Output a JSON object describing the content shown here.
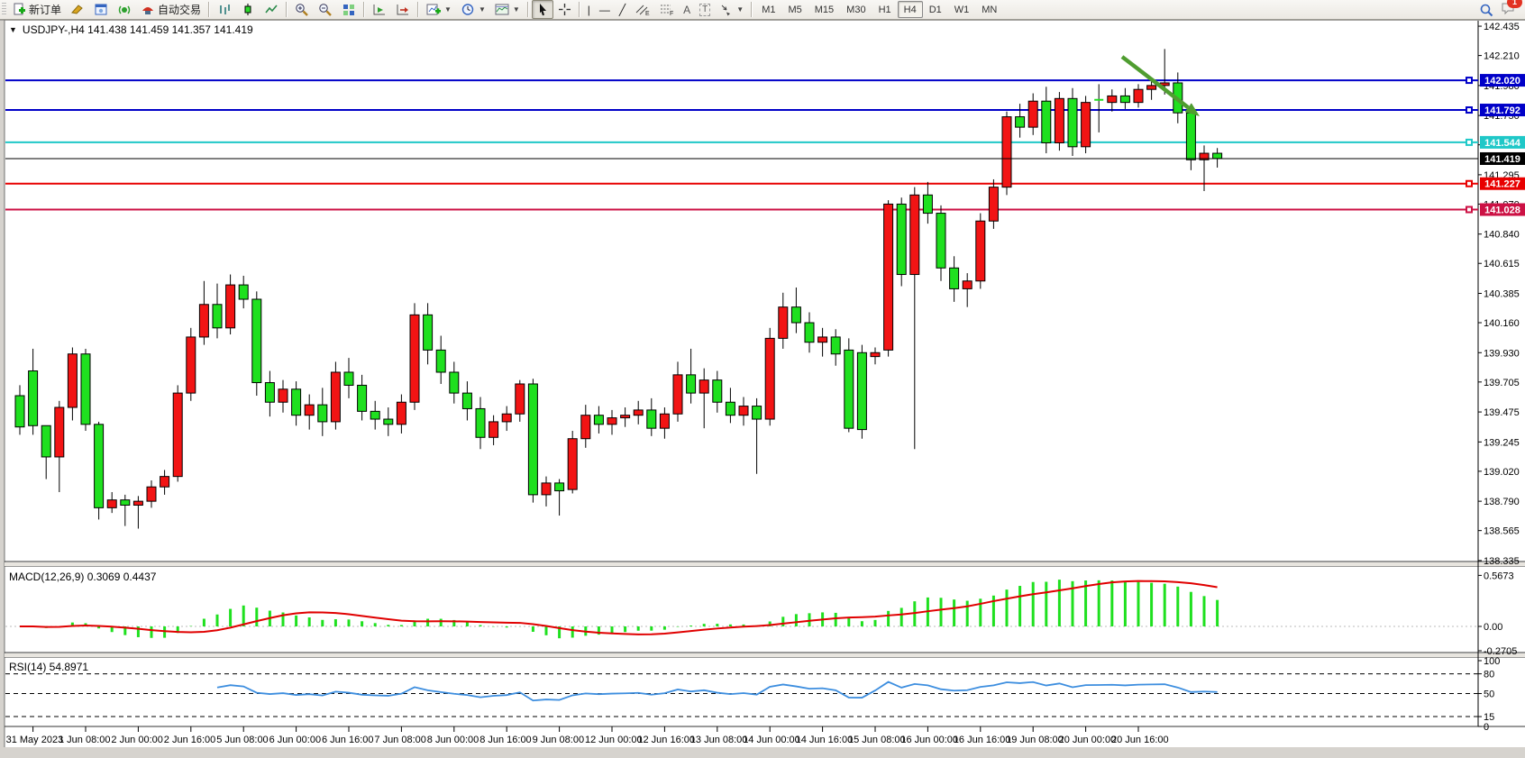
{
  "toolbar": {
    "new_order_label": "新订单",
    "auto_trading_label": "自动交易",
    "text_tool_label": "A",
    "label_tool_label": "T",
    "timeframes": [
      "M1",
      "M5",
      "M15",
      "M30",
      "H1",
      "H4",
      "D1",
      "W1",
      "MN"
    ],
    "active_timeframe": "H4",
    "notification_count": "1",
    "icon_names": [
      "new-order-icon",
      "charts-profile-icon",
      "market-watch-icon",
      "strategy-tester-icon",
      "auto-trading-icon",
      "bar-chart-icon",
      "candlestick-chart-icon",
      "line-chart-icon",
      "zoom-in-icon",
      "zoom-out-icon",
      "tile-windows-icon",
      "auto-scroll-icon",
      "chart-shift-icon",
      "indicators-icon",
      "periods-clock-icon",
      "template-icon",
      "cursor-icon",
      "crosshair-icon",
      "vertical-line-icon",
      "horizontal-line-icon",
      "trendline-icon",
      "channel-icon",
      "fibonacci-icon",
      "text-icon",
      "text-label-icon",
      "arrows-icon",
      "search-icon",
      "chat-icon"
    ]
  },
  "chart": {
    "title": "USDJPY-,H4  141.438 141.459 141.357 141.419",
    "symbol": "USDJPY-",
    "period": "H4",
    "open": "141.438",
    "high": "141.459",
    "low": "141.357",
    "close": "141.419",
    "macd_label": "MACD(12,26,9) 0.3069 0.4437",
    "rsi_label": "RSI(14) 54.8971"
  },
  "chart_data": {
    "type": "candlestick",
    "title": "USDJPY- H4 candlestick chart with MACD(12,26,9) and RSI(14) subwindows",
    "convention": "red = bullish, green = bearish",
    "colors": {
      "bull": "#f21414",
      "bear": "#1fe01f",
      "wick": "#000000",
      "macd_histogram": "#1fe01f",
      "macd_signal": "#e00000",
      "rsi_line": "#3d8edf",
      "line_blue": "#0000c8",
      "line_cyan": "#1fc8c8",
      "line_red": "#e80000",
      "line_crimson": "#cc1144",
      "current_price_bg": "#000000",
      "arrow": "#4f9d30"
    },
    "price_axis_ticks": [
      "142.435",
      "142.210",
      "141.980",
      "141.750",
      "141.525",
      "141.295",
      "141.070",
      "140.840",
      "140.615",
      "140.385",
      "140.160",
      "139.930",
      "139.705",
      "139.475",
      "139.245",
      "139.020",
      "138.790",
      "138.565",
      "138.335"
    ],
    "time_labels": [
      "31 May 2023",
      "1 Jun 08:00",
      "2 Jun 00:00",
      "2 Jun 16:00",
      "5 Jun 08:00",
      "6 Jun 00:00",
      "6 Jun 16:00",
      "7 Jun 08:00",
      "8 Jun 00:00",
      "8 Jun 16:00",
      "9 Jun 08:00",
      "12 Jun 00:00",
      "12 Jun 16:00",
      "13 Jun 08:00",
      "14 Jun 00:00",
      "14 Jun 16:00",
      "15 Jun 08:00",
      "16 Jun 00:00",
      "16 Jun 16:00",
      "19 Jun 08:00",
      "20 Jun 00:00",
      "20 Jun 16:00"
    ],
    "hlines": [
      {
        "label": "142.020",
        "price": 142.02,
        "color": "#0000c8"
      },
      {
        "label": "141.792",
        "price": 141.792,
        "color": "#0000c8"
      },
      {
        "label": "141.544",
        "price": 141.544,
        "color": "#1fc8c8"
      },
      {
        "label": "141.227",
        "price": 141.227,
        "color": "#e80000"
      },
      {
        "label": "141.028",
        "price": 141.028,
        "color": "#cc1144"
      }
    ],
    "current_price": {
      "label": "141.419",
      "price": 141.419
    },
    "arrow_annotation": {
      "direction": "down-right",
      "color": "#4f9d30"
    },
    "macd": {
      "params": [
        12,
        26,
        9
      ],
      "value": "0.3069",
      "signal_value": "0.4437",
      "axis_labels": [
        {
          "text": "0.5673",
          "value": 0.5673
        },
        {
          "text": "0.00",
          "value": 0
        },
        {
          "text": "-0.2705",
          "value": -0.2705
        }
      ]
    },
    "rsi": {
      "period": 14,
      "value": "54.8971",
      "levels": [
        80,
        50,
        15
      ],
      "axis_labels": [
        {
          "text": "100",
          "value": 100
        },
        {
          "text": "80",
          "value": 80
        },
        {
          "text": "50",
          "value": 50
        },
        {
          "text": "15",
          "value": 15
        },
        {
          "text": "0",
          "value": 0
        }
      ]
    },
    "candles": [
      [
        139.6,
        139.68,
        139.3,
        139.36
      ],
      [
        139.79,
        139.96,
        139.3,
        139.37
      ],
      [
        139.37,
        139.37,
        138.96,
        139.13
      ],
      [
        139.13,
        139.56,
        138.86,
        139.51
      ],
      [
        139.51,
        139.97,
        139.41,
        139.92
      ],
      [
        139.92,
        139.96,
        139.33,
        139.38
      ],
      [
        139.38,
        139.4,
        138.65,
        138.74
      ],
      [
        138.74,
        138.86,
        138.7,
        138.8
      ],
      [
        138.8,
        138.84,
        138.6,
        138.76
      ],
      [
        138.76,
        138.83,
        138.58,
        138.79
      ],
      [
        138.79,
        138.95,
        138.74,
        138.9
      ],
      [
        138.9,
        139.03,
        138.84,
        138.98
      ],
      [
        138.98,
        139.68,
        138.94,
        139.62
      ],
      [
        139.62,
        140.12,
        139.56,
        140.05
      ],
      [
        140.05,
        140.48,
        139.99,
        140.3
      ],
      [
        140.3,
        140.46,
        140.04,
        140.12
      ],
      [
        140.12,
        140.53,
        140.07,
        140.45
      ],
      [
        140.45,
        140.52,
        140.27,
        140.34
      ],
      [
        140.34,
        140.4,
        139.6,
        139.7
      ],
      [
        139.7,
        139.79,
        139.44,
        139.55
      ],
      [
        139.55,
        139.72,
        139.47,
        139.65
      ],
      [
        139.65,
        139.71,
        139.37,
        139.45
      ],
      [
        139.45,
        139.61,
        139.34,
        139.53
      ],
      [
        139.53,
        139.66,
        139.29,
        139.4
      ],
      [
        139.4,
        139.86,
        139.34,
        139.78
      ],
      [
        139.78,
        139.89,
        139.58,
        139.68
      ],
      [
        139.68,
        139.76,
        139.41,
        139.48
      ],
      [
        139.48,
        139.56,
        139.34,
        139.42
      ],
      [
        139.42,
        139.51,
        139.29,
        139.38
      ],
      [
        139.38,
        139.61,
        139.31,
        139.55
      ],
      [
        139.55,
        140.31,
        139.49,
        140.22
      ],
      [
        140.22,
        140.31,
        139.84,
        139.95
      ],
      [
        139.95,
        140.06,
        139.69,
        139.78
      ],
      [
        139.78,
        139.86,
        139.54,
        139.62
      ],
      [
        139.62,
        139.71,
        139.41,
        139.5
      ],
      [
        139.5,
        139.59,
        139.19,
        139.28
      ],
      [
        139.28,
        139.45,
        139.22,
        139.4
      ],
      [
        139.4,
        139.52,
        139.33,
        139.46
      ],
      [
        139.46,
        139.72,
        139.4,
        139.69
      ],
      [
        139.69,
        139.73,
        138.78,
        138.84
      ],
      [
        138.84,
        138.98,
        138.75,
        138.93
      ],
      [
        138.93,
        138.96,
        138.68,
        138.87
      ],
      [
        138.88,
        139.33,
        138.85,
        139.27
      ],
      [
        139.27,
        139.53,
        139.2,
        139.45
      ],
      [
        139.45,
        139.52,
        139.31,
        139.38
      ],
      [
        139.38,
        139.49,
        139.3,
        139.43
      ],
      [
        139.43,
        139.51,
        139.36,
        139.45
      ],
      [
        139.45,
        139.56,
        139.38,
        139.49
      ],
      [
        139.49,
        139.58,
        139.29,
        139.35
      ],
      [
        139.35,
        139.51,
        139.27,
        139.46
      ],
      [
        139.46,
        139.86,
        139.4,
        139.76
      ],
      [
        139.76,
        139.96,
        139.54,
        139.62
      ],
      [
        139.62,
        139.81,
        139.35,
        139.72
      ],
      [
        139.72,
        139.79,
        139.47,
        139.55
      ],
      [
        139.55,
        139.66,
        139.39,
        139.45
      ],
      [
        139.45,
        139.59,
        139.37,
        139.52
      ],
      [
        139.52,
        139.58,
        139.0,
        139.42
      ],
      [
        139.42,
        140.12,
        139.37,
        140.04
      ],
      [
        140.04,
        140.39,
        139.96,
        140.28
      ],
      [
        140.28,
        140.43,
        140.08,
        140.16
      ],
      [
        140.16,
        140.24,
        139.93,
        140.01
      ],
      [
        140.01,
        140.12,
        139.9,
        140.05
      ],
      [
        140.05,
        140.11,
        139.83,
        139.92
      ],
      [
        139.95,
        140.04,
        139.32,
        139.35
      ],
      [
        139.93,
        139.99,
        139.27,
        139.34
      ],
      [
        139.9,
        139.97,
        139.84,
        139.93
      ],
      [
        139.95,
        141.1,
        139.9,
        141.07
      ],
      [
        141.07,
        141.12,
        140.44,
        140.53
      ],
      [
        140.53,
        141.2,
        139.19,
        141.14
      ],
      [
        141.14,
        141.24,
        140.92,
        141.0
      ],
      [
        141.0,
        141.06,
        140.48,
        140.58
      ],
      [
        140.58,
        140.67,
        140.32,
        140.42
      ],
      [
        140.42,
        140.54,
        140.28,
        140.48
      ],
      [
        140.48,
        141.0,
        140.42,
        140.94
      ],
      [
        140.94,
        141.26,
        140.88,
        141.2
      ],
      [
        141.2,
        141.78,
        141.14,
        141.74
      ],
      [
        141.74,
        141.84,
        141.58,
        141.66
      ],
      [
        141.66,
        141.92,
        141.6,
        141.86
      ],
      [
        141.86,
        141.97,
        141.46,
        141.54
      ],
      [
        141.54,
        141.93,
        141.48,
        141.88
      ],
      [
        141.88,
        141.96,
        141.44,
        141.51
      ],
      [
        141.51,
        141.9,
        141.46,
        141.85
      ],
      [
        141.87,
        141.99,
        141.62,
        141.87
      ],
      [
        141.85,
        141.95,
        141.78,
        141.9
      ],
      [
        141.9,
        141.96,
        141.8,
        141.85
      ],
      [
        141.85,
        141.99,
        141.81,
        141.95
      ],
      [
        141.95,
        142.02,
        141.87,
        141.98
      ],
      [
        141.98,
        142.26,
        141.91,
        142.0
      ],
      [
        142.0,
        142.08,
        141.69,
        141.77
      ],
      [
        141.77,
        141.84,
        141.33,
        141.41
      ],
      [
        141.41,
        141.52,
        141.17,
        141.46
      ],
      [
        141.46,
        141.5,
        141.35,
        141.42
      ]
    ]
  }
}
